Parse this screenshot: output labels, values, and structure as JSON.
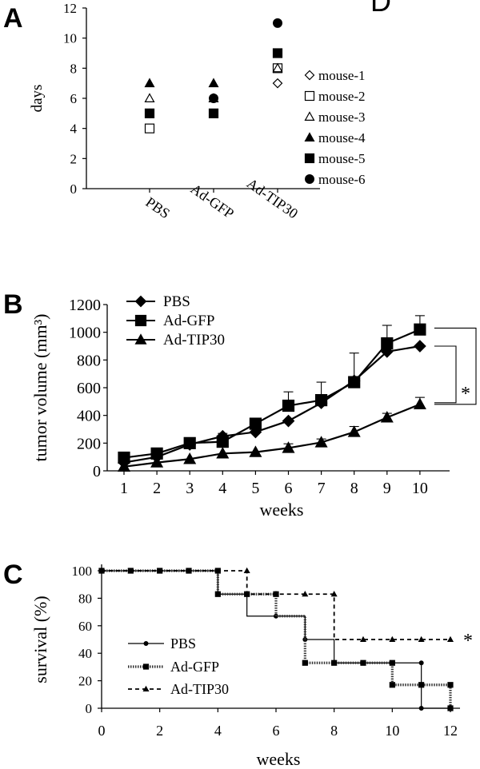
{
  "panels": {
    "A": "A",
    "B": "B",
    "C": "C",
    "D_fragment": "D"
  },
  "chart_data": [
    {
      "type": "scatter",
      "panel": "A",
      "title": "",
      "ylabel": "days",
      "xlabel": "",
      "ylim": [
        0,
        12
      ],
      "yticks": [
        0,
        2,
        4,
        6,
        8,
        10,
        12
      ],
      "categories": [
        "PBS",
        "Ad-GFP",
        "Ad-TIP30"
      ],
      "legend_position": "right",
      "series": [
        {
          "name": "mouse-1",
          "marker": "diamond-open",
          "values": [
            null,
            null,
            7
          ]
        },
        {
          "name": "mouse-2",
          "marker": "square-open",
          "values": [
            4,
            null,
            8
          ]
        },
        {
          "name": "mouse-3",
          "marker": "triangle-open",
          "values": [
            6,
            6,
            8
          ]
        },
        {
          "name": "mouse-4",
          "marker": "triangle-filled",
          "values": [
            7,
            7,
            null
          ]
        },
        {
          "name": "mouse-5",
          "marker": "square-filled",
          "values": [
            5,
            5,
            9
          ]
        },
        {
          "name": "mouse-6",
          "marker": "circle-filled",
          "values": [
            5,
            6,
            11
          ]
        }
      ]
    },
    {
      "type": "line",
      "panel": "B",
      "title": "",
      "ylabel": "tumor volume (mm³)",
      "xlabel": "weeks",
      "ylim": [
        0,
        1200
      ],
      "yticks": [
        0,
        200,
        400,
        600,
        800,
        1000,
        1200
      ],
      "x": [
        1,
        2,
        3,
        4,
        5,
        6,
        7,
        8,
        9,
        10
      ],
      "legend_position": "top-left",
      "annotation": "*",
      "series": [
        {
          "name": "PBS",
          "marker": "diamond",
          "values": [
            60,
            100,
            190,
            250,
            280,
            360,
            490,
            650,
            860,
            900
          ],
          "errors": [
            0,
            0,
            0,
            0,
            0,
            0,
            0,
            0,
            0,
            0
          ]
        },
        {
          "name": "Ad-GFP",
          "marker": "square",
          "values": [
            95,
            125,
            200,
            210,
            340,
            470,
            510,
            640,
            920,
            1020
          ],
          "errors": [
            0,
            0,
            0,
            60,
            0,
            100,
            130,
            210,
            130,
            100
          ]
        },
        {
          "name": "Ad-TIP30",
          "marker": "triangle",
          "values": [
            30,
            60,
            85,
            125,
            135,
            165,
            205,
            280,
            385,
            480
          ],
          "errors": [
            0,
            0,
            0,
            0,
            0,
            30,
            25,
            40,
            30,
            50
          ]
        }
      ]
    },
    {
      "type": "line",
      "subtype": "step",
      "panel": "C",
      "title": "",
      "ylabel": "survival (%)",
      "xlabel": "weeks",
      "ylim": [
        0,
        100
      ],
      "yticks": [
        0,
        20,
        40,
        60,
        80,
        100
      ],
      "xlim": [
        0,
        12
      ],
      "xticks": [
        0,
        2,
        4,
        6,
        8,
        10,
        12
      ],
      "legend_position": "bottom-left",
      "annotation": "*",
      "series": [
        {
          "name": "PBS",
          "style": "solid-circle",
          "steps": [
            [
              0,
              100
            ],
            [
              4,
              100
            ],
            [
              4,
              83
            ],
            [
              5,
              83
            ],
            [
              5,
              67
            ],
            [
              7,
              67
            ],
            [
              7,
              50
            ],
            [
              8,
              50
            ],
            [
              8,
              33
            ],
            [
              11,
              33
            ],
            [
              11,
              0
            ],
            [
              12,
              0
            ]
          ],
          "markers": [
            [
              0,
              100
            ],
            [
              1,
              100
            ],
            [
              2,
              100
            ],
            [
              3,
              100
            ],
            [
              4,
              100
            ],
            [
              5,
              83
            ],
            [
              6,
              67
            ],
            [
              7,
              50
            ],
            [
              8,
              33
            ],
            [
              9,
              33
            ],
            [
              10,
              33
            ],
            [
              11,
              33
            ],
            [
              11,
              0
            ],
            [
              12,
              0
            ]
          ]
        },
        {
          "name": "Ad-GFP",
          "style": "dotted-square",
          "steps": [
            [
              0,
              100
            ],
            [
              4,
              100
            ],
            [
              4,
              83
            ],
            [
              6,
              83
            ],
            [
              6,
              67
            ],
            [
              7,
              67
            ],
            [
              7,
              33
            ],
            [
              10,
              33
            ],
            [
              10,
              17
            ],
            [
              12,
              17
            ],
            [
              12,
              0
            ]
          ],
          "markers": [
            [
              0,
              100
            ],
            [
              1,
              100
            ],
            [
              2,
              100
            ],
            [
              3,
              100
            ],
            [
              4,
              100
            ],
            [
              4,
              83
            ],
            [
              5,
              83
            ],
            [
              6,
              83
            ],
            [
              7,
              33
            ],
            [
              8,
              33
            ],
            [
              9,
              33
            ],
            [
              10,
              33
            ],
            [
              10,
              17
            ],
            [
              11,
              17
            ],
            [
              12,
              17
            ],
            [
              12,
              0
            ]
          ]
        },
        {
          "name": "Ad-TIP30",
          "style": "dashed-triangle",
          "steps": [
            [
              0,
              100
            ],
            [
              5,
              100
            ],
            [
              5,
              83
            ],
            [
              8,
              83
            ],
            [
              8,
              50
            ],
            [
              12,
              50
            ]
          ],
          "markers": [
            [
              5,
              100
            ],
            [
              6,
              83
            ],
            [
              7,
              83
            ],
            [
              8,
              83
            ],
            [
              9,
              50
            ],
            [
              10,
              50
            ],
            [
              11,
              50
            ],
            [
              12,
              50
            ]
          ]
        }
      ]
    }
  ]
}
